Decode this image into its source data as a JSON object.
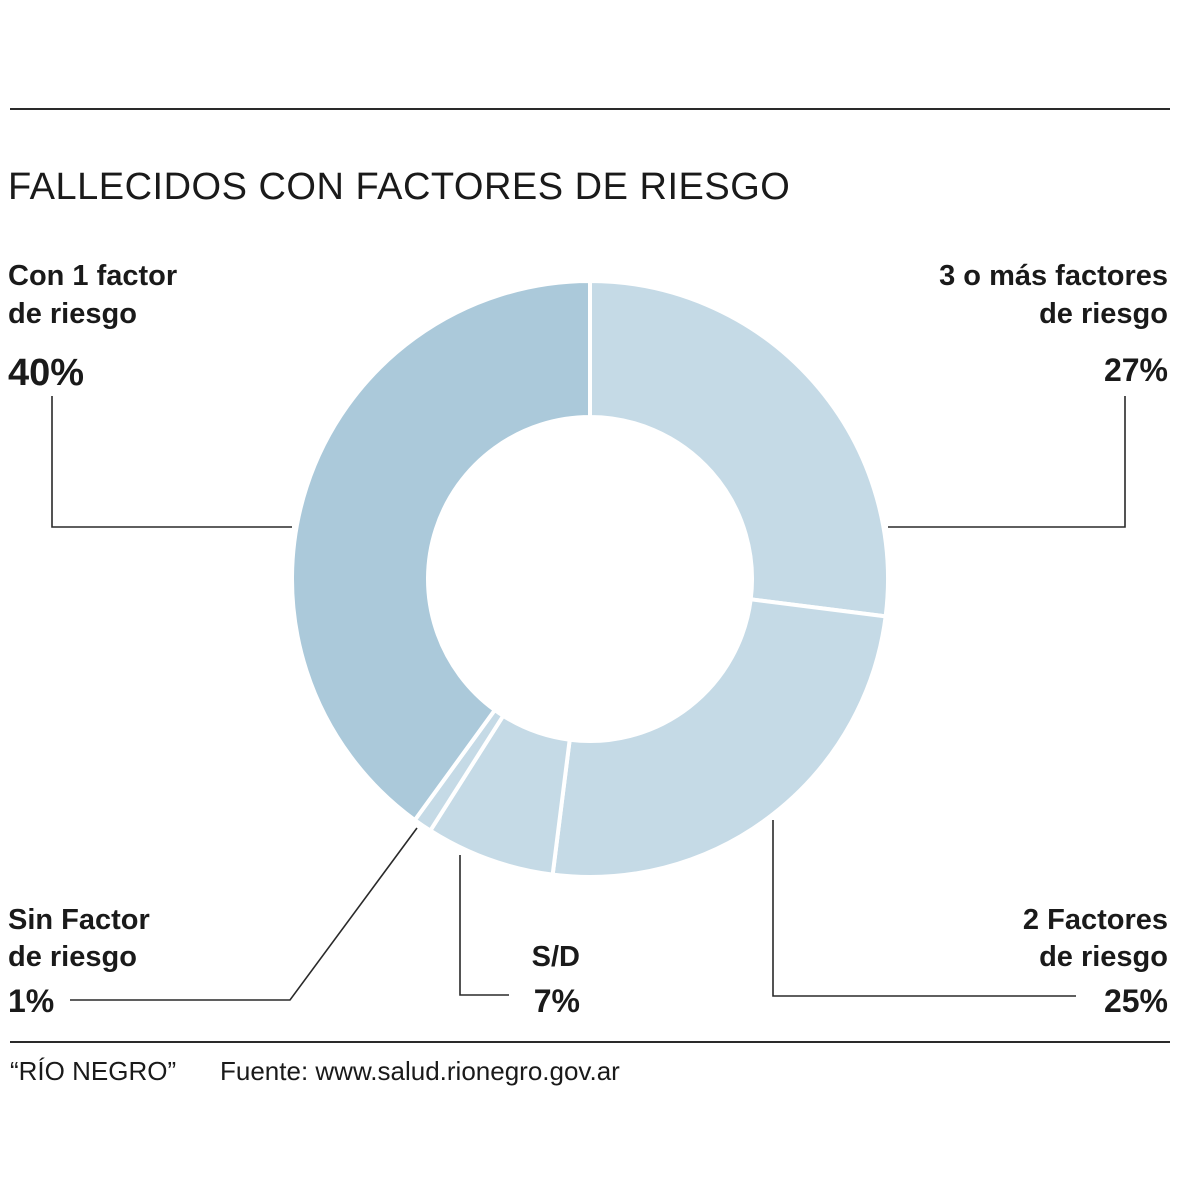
{
  "title": "FALLECIDOS CON FACTORES DE RIESGO",
  "footer": {
    "credit": "“RÍO NEGRO”",
    "source": "Fuente: www.salud.rionegro.gov.ar"
  },
  "colors": {
    "slice_dark": "#abc9da",
    "slice_light": "#c5dae6",
    "text": "#1a1a1a",
    "leader": "#2a2a2a"
  },
  "chart_data": {
    "type": "pie",
    "donut": true,
    "title": "FALLECIDOS CON FACTORES DE RIESGO",
    "unit": "%",
    "slices": [
      {
        "key": "tres_o_mas",
        "label_lines": [
          "3 o más factores",
          "de riesgo"
        ],
        "value": 27,
        "value_label": "27%",
        "color": "#c5dae6"
      },
      {
        "key": "dos",
        "label_lines": [
          "2 Factores",
          "de riesgo"
        ],
        "value": 25,
        "value_label": "25%",
        "color": "#c5dae6"
      },
      {
        "key": "sd",
        "label_lines": [
          "S/D"
        ],
        "value": 7,
        "value_label": "7%",
        "color": "#c5dae6"
      },
      {
        "key": "sin",
        "label_lines": [
          "Sin Factor",
          "de riesgo"
        ],
        "value": 1,
        "value_label": "1%",
        "color": "#c5dae6"
      },
      {
        "key": "uno",
        "label_lines": [
          "Con 1 factor",
          "de riesgo"
        ],
        "value": 40,
        "value_label": "40%",
        "color": "#abc9da"
      }
    ]
  }
}
